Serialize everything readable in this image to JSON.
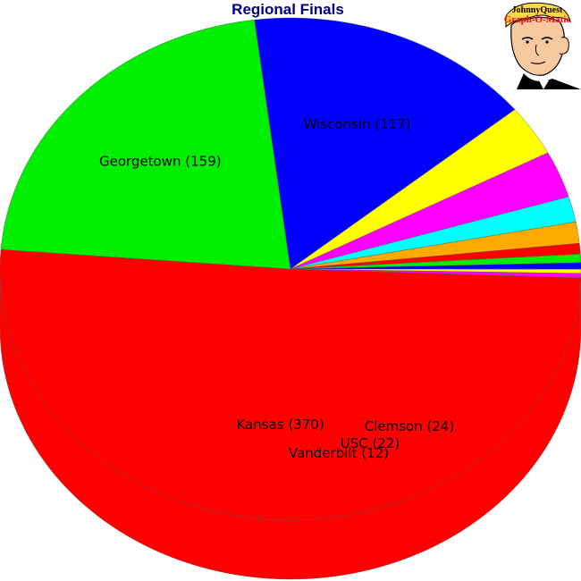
{
  "chart_data": {
    "type": "pie",
    "title": "Regional Finals",
    "three_d": true,
    "slices": [
      {
        "label": "Kansas (370)",
        "value": 370,
        "color": "#ff0000"
      },
      {
        "label": "Georgetown (159)",
        "value": 159,
        "color": "#00ee00"
      },
      {
        "label": "Wisconsin (117)",
        "value": 117,
        "color": "#0000ff"
      },
      {
        "label": "",
        "value": 24,
        "color": "#ffff00"
      },
      {
        "label": "",
        "value": 22,
        "color": "#ff00ff"
      },
      {
        "label": "",
        "value": 12,
        "color": "#00ffff"
      },
      {
        "label": "",
        "value": 10,
        "color": "#ffaa00"
      },
      {
        "label": "",
        "value": 5,
        "color": "#ff0000"
      },
      {
        "label": "",
        "value": 4,
        "color": "#00ee00"
      },
      {
        "label": "",
        "value": 3,
        "color": "#0000ff"
      },
      {
        "label": "",
        "value": 2,
        "color": "#ffff00"
      },
      {
        "label": "",
        "value": 2,
        "color": "#ff00ff"
      }
    ],
    "annotations": [
      {
        "label": "Clemson (24)"
      },
      {
        "label": "USC (22)"
      },
      {
        "label": "Vanderbilt (12)"
      }
    ]
  },
  "logo": {
    "line1": "JohnnyQuest",
    "line2": "Graph-O-Matic"
  }
}
